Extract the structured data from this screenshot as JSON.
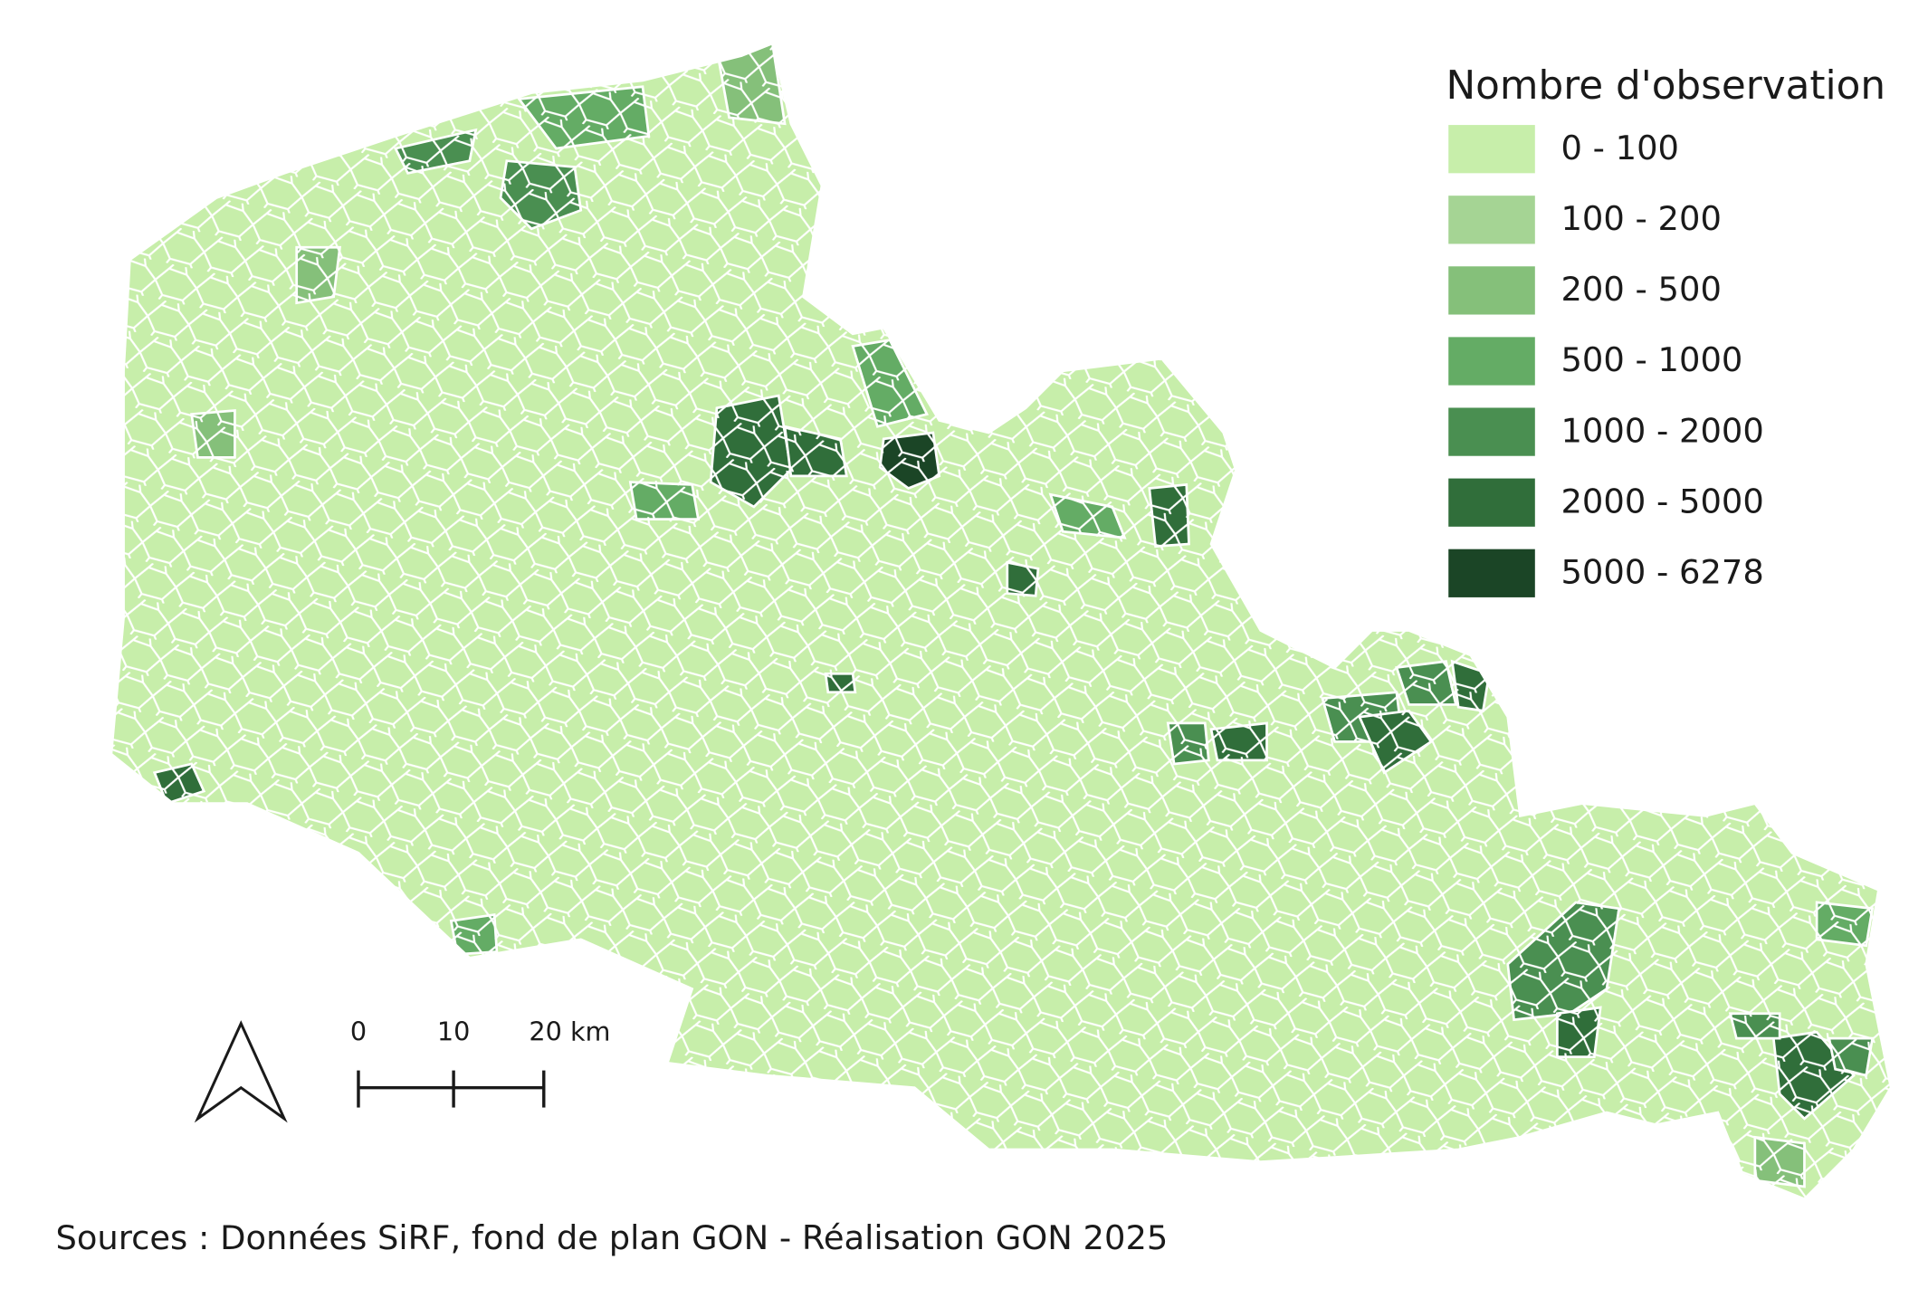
{
  "legend": {
    "title": "Nombre d'observation",
    "items": [
      {
        "label": "0 - 100",
        "color": "#c7eeaa"
      },
      {
        "label": "100 - 200",
        "color": "#a5d494"
      },
      {
        "label": "200 - 500",
        "color": "#85c07a"
      },
      {
        "label": "500 - 1000",
        "color": "#64ac65"
      },
      {
        "label": "1000 - 2000",
        "color": "#4a8f51"
      },
      {
        "label": "2000 - 5000",
        "color": "#306e3a"
      },
      {
        "label": "5000 - 6278",
        "color": "#1b4526"
      }
    ]
  },
  "scale_bar": {
    "labels": [
      "0",
      "10",
      "20 km"
    ]
  },
  "source": "Sources : Données SiRF, fond de plan GON - Réalisation GON 2025"
}
